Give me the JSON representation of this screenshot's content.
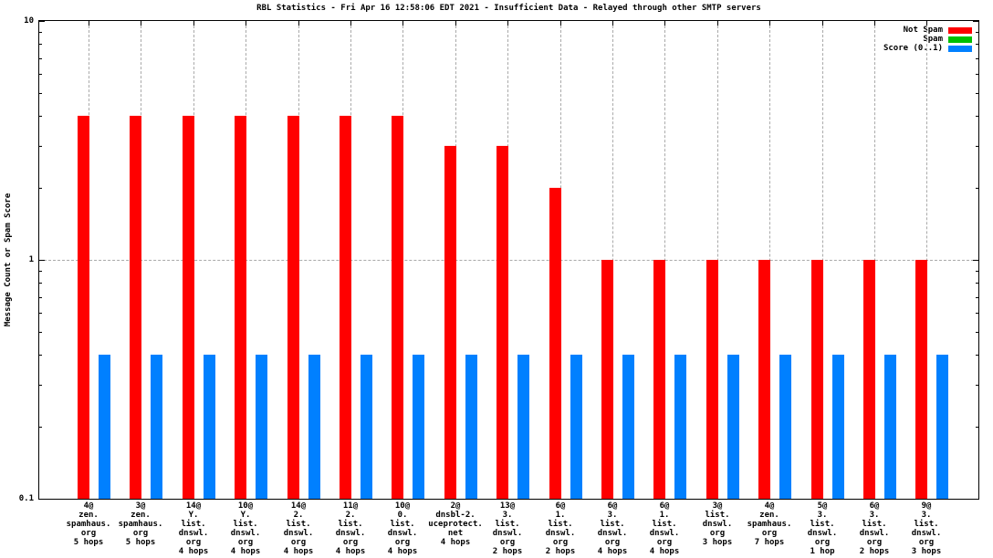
{
  "chart_data": {
    "type": "bar",
    "title": "RBL Statistics - Fri Apr 16 12:58:06 EDT 2021 - Insufficient Data - Relayed through other SMTP servers",
    "ylabel": "Message Count or Spam Score",
    "yscale": "log",
    "ylim": [
      0.1,
      10
    ],
    "yticks": [
      {
        "value": 10,
        "label": "10"
      },
      {
        "value": 1,
        "label": "1"
      },
      {
        "value": 0.1,
        "label": "0.1"
      }
    ],
    "grid": true,
    "legend_position": "top-right-inside",
    "grid_color": "#a9a9a9",
    "categories": [
      [
        "4@",
        "zen.",
        "spamhaus.",
        "org",
        "5 hops"
      ],
      [
        "3@",
        "zen.",
        "spamhaus.",
        "org",
        "5 hops"
      ],
      [
        "14@",
        "Y.",
        "list.",
        "dnswl.",
        "org",
        "4 hops"
      ],
      [
        "10@",
        "Y.",
        "list.",
        "dnswl.",
        "org",
        "4 hops"
      ],
      [
        "14@",
        "2.",
        "list.",
        "dnswl.",
        "org",
        "4 hops"
      ],
      [
        "11@",
        "2.",
        "list.",
        "dnswl.",
        "org",
        "4 hops"
      ],
      [
        "10@",
        "0.",
        "list.",
        "dnswl.",
        "org",
        "4 hops"
      ],
      [
        "2@",
        "dnsbl-2.",
        "uceprotect.",
        "net",
        "4 hops"
      ],
      [
        "13@",
        "3.",
        "list.",
        "dnswl.",
        "org",
        "2 hops"
      ],
      [
        "6@",
        "1.",
        "list.",
        "dnswl.",
        "org",
        "2 hops"
      ],
      [
        "6@",
        "3.",
        "list.",
        "dnswl.",
        "org",
        "4 hops"
      ],
      [
        "6@",
        "1.",
        "list.",
        "dnswl.",
        "org",
        "4 hops"
      ],
      [
        "3@",
        "list.",
        "dnswl.",
        "org",
        "3 hops"
      ],
      [
        "4@",
        "zen.",
        "spamhaus.",
        "org",
        "7 hops"
      ],
      [
        "5@",
        "3.",
        "list.",
        "dnswl.",
        "org",
        "1 hop"
      ],
      [
        "6@",
        "3.",
        "list.",
        "dnswl.",
        "org",
        "2 hops"
      ],
      [
        "9@",
        "3.",
        "list.",
        "dnswl.",
        "org",
        "3 hops"
      ]
    ],
    "series": [
      {
        "name": "Not Spam",
        "color": "#ff0000",
        "values": [
          4,
          4,
          4,
          4,
          4,
          4,
          4,
          3,
          3,
          2,
          1,
          1,
          1,
          1,
          1,
          1,
          1
        ]
      },
      {
        "name": "Spam",
        "color": "#00c000",
        "values": [
          0,
          0,
          0,
          0,
          0,
          0,
          0,
          0,
          0,
          0,
          0,
          0,
          0,
          0,
          0,
          0,
          0
        ]
      },
      {
        "name": "Score (0..1)",
        "color": "#0080ff",
        "values": [
          0.4,
          0.4,
          0.4,
          0.4,
          0.4,
          0.4,
          0.4,
          0.4,
          0.4,
          0.4,
          0.4,
          0.4,
          0.4,
          0.4,
          0.4,
          0.4,
          0.4
        ]
      }
    ]
  }
}
